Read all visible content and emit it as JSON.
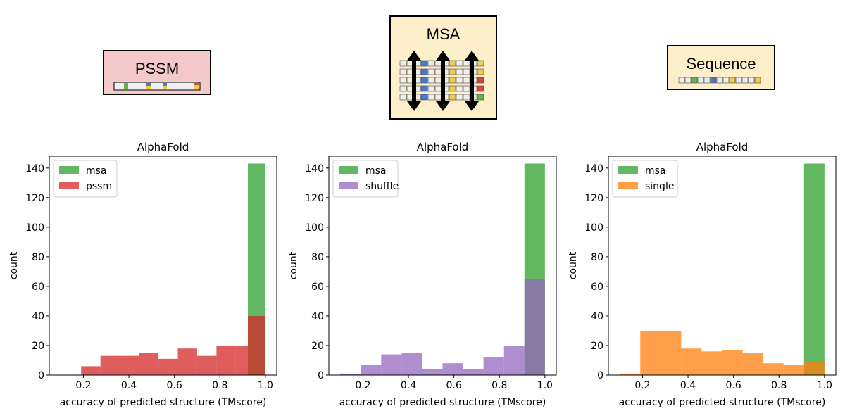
{
  "icons": {
    "pssm": {
      "title": "PSSM",
      "bg": "#f4c9c9"
    },
    "msa": {
      "title": "MSA",
      "bg": "#fdefc9"
    },
    "sequence": {
      "title": "Sequence",
      "bg": "#fdefc9"
    }
  },
  "colors": {
    "msa": "#2ca02c",
    "pssm": "#d62728",
    "shuffle": "#9467bd",
    "single": "#ff7f0e"
  },
  "chart_data": [
    {
      "type": "bar",
      "title": "AlphaFold",
      "xlabel": "accuracy of predicted structure (TMscore)",
      "ylabel": "count",
      "xlim": [
        0.05,
        1.05
      ],
      "ylim": [
        0,
        148
      ],
      "xticks": [
        "0.2",
        "0.4",
        "0.6",
        "0.8",
        "1.0"
      ],
      "yticks": [
        "0",
        "20",
        "40",
        "60",
        "80",
        "100",
        "120",
        "140"
      ],
      "legend_position": "top-left",
      "series": [
        {
          "name": "msa",
          "color": "#2ca02c",
          "bins": [
            [
              0.923,
              1.0
            ]
          ],
          "values": [
            143
          ]
        },
        {
          "name": "pssm",
          "color": "#d62728",
          "bins": [
            [
              0.19,
              0.275
            ],
            [
              0.275,
              0.36
            ],
            [
              0.36,
              0.445
            ],
            [
              0.445,
              0.53
            ],
            [
              0.53,
              0.615
            ],
            [
              0.615,
              0.7
            ],
            [
              0.7,
              0.785
            ],
            [
              0.785,
              0.87
            ],
            [
              0.87,
              0.923
            ],
            [
              0.923,
              1.0
            ]
          ],
          "values": [
            6,
            13,
            13,
            15,
            11,
            18,
            13,
            20,
            20,
            40
          ]
        }
      ]
    },
    {
      "type": "bar",
      "title": "AlphaFold",
      "xlabel": "accuracy of predicted structure (TMscore)",
      "ylabel": "count",
      "xlim": [
        0.05,
        1.05
      ],
      "ylim": [
        0,
        148
      ],
      "xticks": [
        "0.2",
        "0.4",
        "0.6",
        "0.8",
        "1.0"
      ],
      "yticks": [
        "0",
        "20",
        "40",
        "60",
        "80",
        "100",
        "120",
        "140"
      ],
      "legend_position": "top-left",
      "series": [
        {
          "name": "msa",
          "color": "#2ca02c",
          "bins": [
            [
              0.91,
              1.0
            ]
          ],
          "values": [
            143
          ]
        },
        {
          "name": "shuffle",
          "color": "#9467bd",
          "bins": [
            [
              0.1,
              0.19
            ],
            [
              0.19,
              0.28
            ],
            [
              0.28,
              0.37
            ],
            [
              0.37,
              0.46
            ],
            [
              0.46,
              0.55
            ],
            [
              0.55,
              0.64
            ],
            [
              0.64,
              0.73
            ],
            [
              0.73,
              0.82
            ],
            [
              0.82,
              0.91
            ],
            [
              0.91,
              1.0
            ]
          ],
          "values": [
            1,
            7,
            14,
            15,
            4,
            8,
            4,
            12,
            20,
            65
          ]
        }
      ]
    },
    {
      "type": "bar",
      "title": "AlphaFold",
      "xlabel": "accuracy of predicted structure (TMscore)",
      "ylabel": "count",
      "xlim": [
        0.05,
        1.05
      ],
      "ylim": [
        0,
        148
      ],
      "xticks": [
        "0.2",
        "0.4",
        "0.6",
        "0.8",
        "1.0"
      ],
      "yticks": [
        "0",
        "20",
        "40",
        "60",
        "80",
        "100",
        "120",
        "140"
      ],
      "legend_position": "top-left",
      "series": [
        {
          "name": "msa",
          "color": "#2ca02c",
          "bins": [
            [
              0.91,
              1.0
            ]
          ],
          "values": [
            143
          ]
        },
        {
          "name": "single",
          "color": "#ff7f0e",
          "bins": [
            [
              0.1,
              0.19
            ],
            [
              0.19,
              0.28
            ],
            [
              0.28,
              0.37
            ],
            [
              0.37,
              0.46
            ],
            [
              0.46,
              0.55
            ],
            [
              0.55,
              0.64
            ],
            [
              0.64,
              0.73
            ],
            [
              0.73,
              0.82
            ],
            [
              0.82,
              0.91
            ],
            [
              0.91,
              1.0
            ]
          ],
          "values": [
            1,
            30,
            30,
            18,
            16,
            17,
            15,
            8,
            7,
            9
          ]
        }
      ]
    }
  ]
}
